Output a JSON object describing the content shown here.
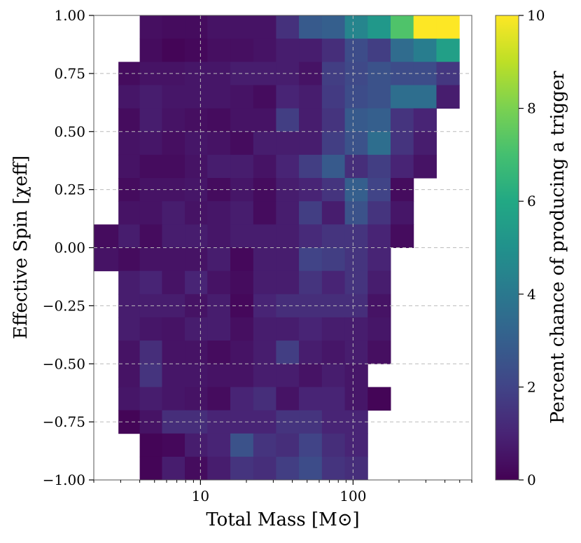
{
  "chart_data": {
    "type": "heatmap",
    "xlabel": "Total Mass [M⊙]",
    "ylabel": "Effective Spin [χeff]",
    "colorbar_label": "Percent chance of producing a trigger",
    "x_scale": "log",
    "xlim": [
      2,
      600
    ],
    "ylim": [
      -1.0,
      1.0
    ],
    "x_ticks": [
      10,
      100
    ],
    "x_tick_labels": [
      "10",
      "100"
    ],
    "y_ticks": [
      1.0,
      0.75,
      0.5,
      0.25,
      0.0,
      -0.25,
      -0.5,
      -0.75,
      -1.0
    ],
    "y_tick_labels": [
      "1.00",
      "0.75",
      "0.50",
      "0.25",
      "0.00",
      "−0.25",
      "−0.50",
      "−0.75",
      "−1.00"
    ],
    "colorbar_range": [
      0,
      10
    ],
    "colorbar_ticks": [
      0,
      2,
      4,
      6,
      8,
      10
    ],
    "colorbar_tick_labels": [
      "0",
      "2",
      "4",
      "6",
      "8",
      "10"
    ],
    "colormap": "viridis",
    "grid": true,
    "mass_bin_edges": [
      2.0,
      2.9,
      4.0,
      5.6,
      7.9,
      11.1,
      15.7,
      22.2,
      31.3,
      44.2,
      62.5,
      88.3,
      124.7,
      176.2,
      249.0,
      351.8,
      497.0
    ],
    "spin_bin_edges": [
      -1.0,
      -0.9,
      -0.8,
      -0.7,
      -0.6,
      -0.5,
      -0.4,
      -0.3,
      -0.2,
      -0.1,
      0.0,
      0.1,
      0.2,
      0.3,
      0.4,
      0.5,
      0.6,
      0.7,
      0.8,
      0.9,
      1.0
    ],
    "values_rows_top_to_bottom": [
      [
        null,
        null,
        0.4,
        0.3,
        0.3,
        0.5,
        0.5,
        0.5,
        1.4,
        2.8,
        3.0,
        4.5,
        5.3,
        7.2,
        10.0,
        10.0
      ],
      [
        null,
        null,
        0.3,
        0.1,
        0.2,
        0.4,
        0.4,
        0.5,
        0.8,
        0.8,
        1.3,
        2.3,
        1.8,
        3.5,
        4.2,
        5.6
      ],
      [
        null,
        0.3,
        0.5,
        0.5,
        0.6,
        0.6,
        0.8,
        0.8,
        0.8,
        0.5,
        1.8,
        2.2,
        2.5,
        2.3,
        2.3,
        1.6
      ],
      [
        null,
        0.6,
        0.8,
        0.6,
        0.6,
        0.6,
        0.5,
        0.3,
        1.0,
        0.8,
        1.7,
        2.3,
        2.5,
        3.6,
        3.6,
        0.8
      ],
      [
        null,
        0.3,
        0.8,
        0.5,
        0.4,
        0.3,
        0.5,
        0.5,
        1.8,
        0.8,
        1.5,
        2.8,
        3.0,
        1.5,
        1.0,
        null
      ],
      [
        null,
        0.5,
        0.6,
        0.4,
        0.6,
        0.5,
        0.3,
        0.8,
        0.8,
        0.8,
        1.8,
        2.5,
        3.6,
        1.5,
        0.8,
        null
      ],
      [
        null,
        0.5,
        0.3,
        0.3,
        0.5,
        0.8,
        0.8,
        0.5,
        1.0,
        1.8,
        2.8,
        1.3,
        1.8,
        1.0,
        0.5,
        null
      ],
      [
        null,
        0.3,
        0.5,
        0.5,
        0.6,
        0.3,
        0.6,
        0.3,
        0.8,
        1.0,
        1.5,
        3.0,
        2.0,
        0.3,
        null,
        null
      ],
      [
        null,
        0.5,
        0.5,
        0.8,
        0.5,
        0.6,
        0.8,
        0.3,
        0.8,
        1.8,
        0.8,
        2.5,
        1.5,
        0.6,
        null,
        null
      ],
      [
        0.3,
        0.8,
        0.3,
        0.8,
        0.8,
        0.6,
        0.8,
        0.8,
        0.8,
        1.2,
        1.5,
        1.5,
        1.0,
        0.3,
        null,
        null
      ],
      [
        0.5,
        0.3,
        0.5,
        0.5,
        0.5,
        0.8,
        0.2,
        0.8,
        0.8,
        2.0,
        1.8,
        1.5,
        1.0,
        null,
        null,
        null
      ],
      [
        null,
        0.8,
        1.0,
        0.5,
        1.0,
        0.5,
        0.3,
        0.8,
        0.8,
        1.5,
        1.0,
        1.5,
        0.8,
        null,
        null,
        null
      ],
      [
        null,
        0.8,
        0.8,
        0.8,
        0.5,
        0.8,
        0.2,
        1.0,
        1.3,
        1.3,
        1.3,
        1.3,
        0.5,
        null,
        null,
        null
      ],
      [
        null,
        0.8,
        0.6,
        0.5,
        0.8,
        0.8,
        0.4,
        0.8,
        0.8,
        1.0,
        0.8,
        0.8,
        0.6,
        null,
        null,
        null
      ],
      [
        null,
        0.5,
        1.3,
        0.5,
        0.5,
        0.3,
        0.5,
        0.8,
        1.8,
        0.8,
        0.6,
        0.8,
        0.4,
        null,
        null,
        null
      ],
      [
        null,
        0.5,
        1.5,
        0.6,
        0.6,
        0.5,
        0.5,
        0.8,
        0.8,
        0.5,
        0.8,
        0.6,
        null,
        null,
        null,
        null
      ],
      [
        null,
        0.6,
        0.8,
        0.6,
        0.5,
        0.3,
        1.0,
        1.3,
        0.5,
        1.0,
        1.0,
        0.6,
        0.1,
        null,
        null,
        null
      ],
      [
        null,
        0.1,
        0.5,
        1.3,
        1.3,
        1.0,
        1.0,
        1.0,
        1.5,
        1.5,
        1.0,
        1.0,
        null,
        null,
        null,
        null
      ],
      [
        null,
        null,
        0.1,
        0.2,
        0.8,
        1.0,
        2.5,
        1.5,
        1.3,
        2.0,
        1.3,
        1.0,
        null,
        null,
        null,
        null
      ],
      [
        null,
        null,
        0.1,
        0.8,
        0.3,
        0.8,
        1.5,
        1.3,
        1.8,
        2.3,
        1.5,
        1.3,
        null,
        null,
        null,
        null
      ]
    ]
  }
}
